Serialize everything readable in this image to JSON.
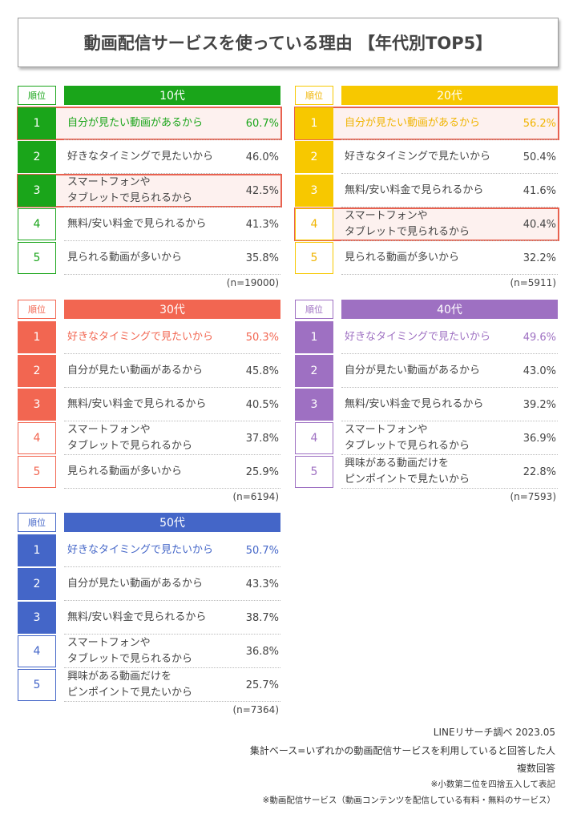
{
  "title": "動画配信サービスを使っている理由 【年代別TOP5】",
  "rank_header": "順位",
  "panels": [
    {
      "header": "10代",
      "color": "#1aa51a",
      "text_color": "#1aa51a",
      "n": "(n=19000)",
      "rows": [
        {
          "rank": "1",
          "reason": "自分が見たい動画があるから",
          "pct": "60.7%",
          "highlight": true
        },
        {
          "rank": "2",
          "reason": "好きなタイミングで見たいから",
          "pct": "46.0%"
        },
        {
          "rank": "3",
          "reason": "スマートフォンや\nタブレットで見られるから",
          "pct": "42.5%",
          "highlight": true
        },
        {
          "rank": "4",
          "reason": "無料/安い料金で見られるから",
          "pct": "41.3%"
        },
        {
          "rank": "5",
          "reason": "見られる動画が多いから",
          "pct": "35.8%"
        }
      ]
    },
    {
      "header": "20代",
      "color": "#f7c800",
      "text_color": "#f0b400",
      "n": "(n=5911)",
      "rows": [
        {
          "rank": "1",
          "reason": "自分が見たい動画があるから",
          "pct": "56.2%",
          "highlight": true
        },
        {
          "rank": "2",
          "reason": "好きなタイミングで見たいから",
          "pct": "50.4%"
        },
        {
          "rank": "3",
          "reason": "無料/安い料金で見られるから",
          "pct": "41.6%"
        },
        {
          "rank": "4",
          "reason": "スマートフォンや\nタブレットで見られるから",
          "pct": "40.4%",
          "highlight": true
        },
        {
          "rank": "5",
          "reason": "見られる動画が多いから",
          "pct": "32.2%"
        }
      ]
    },
    {
      "header": "30代",
      "color": "#f26651",
      "text_color": "#f26651",
      "n": "(n=6194)",
      "rows": [
        {
          "rank": "1",
          "reason": "好きなタイミングで見たいから",
          "pct": "50.3%"
        },
        {
          "rank": "2",
          "reason": "自分が見たい動画があるから",
          "pct": "45.8%"
        },
        {
          "rank": "3",
          "reason": "無料/安い料金で見られるから",
          "pct": "40.5%"
        },
        {
          "rank": "4",
          "reason": "スマートフォンや\nタブレットで見られるから",
          "pct": "37.8%"
        },
        {
          "rank": "5",
          "reason": "見られる動画が多いから",
          "pct": "25.9%"
        }
      ]
    },
    {
      "header": "40代",
      "color": "#9e70c2",
      "text_color": "#9e70c2",
      "n": "(n=7593)",
      "rows": [
        {
          "rank": "1",
          "reason": "好きなタイミングで見たいから",
          "pct": "49.6%"
        },
        {
          "rank": "2",
          "reason": "自分が見たい動画があるから",
          "pct": "43.0%"
        },
        {
          "rank": "3",
          "reason": "無料/安い料金で見られるから",
          "pct": "39.2%"
        },
        {
          "rank": "4",
          "reason": "スマートフォンや\nタブレットで見られるから",
          "pct": "36.9%"
        },
        {
          "rank": "5",
          "reason": "興味がある動画だけを\nピンポイントで見たいから",
          "pct": "22.8%"
        }
      ]
    },
    {
      "header": "50代",
      "color": "#4466c8",
      "text_color": "#4466c8",
      "n": "(n=7364)",
      "rows": [
        {
          "rank": "1",
          "reason": "好きなタイミングで見たいから",
          "pct": "50.7%"
        },
        {
          "rank": "2",
          "reason": "自分が見たい動画があるから",
          "pct": "43.3%"
        },
        {
          "rank": "3",
          "reason": "無料/安い料金で見られるから",
          "pct": "38.7%"
        },
        {
          "rank": "4",
          "reason": "スマートフォンや\nタブレットで見られるから",
          "pct": "36.8%"
        },
        {
          "rank": "5",
          "reason": "興味がある動画だけを\nピンポイントで見たいから",
          "pct": "25.7%"
        }
      ]
    }
  ],
  "footer": [
    "LINEリサーチ調べ 2023.05",
    "集計ベース=いずれかの動画配信サービスを利用していると回答した人",
    "複数回答",
    "※小数第二位を四捨五入して表記",
    "※動画配信サービス（動画コンテンツを配信している有料・無料のサービス）"
  ]
}
